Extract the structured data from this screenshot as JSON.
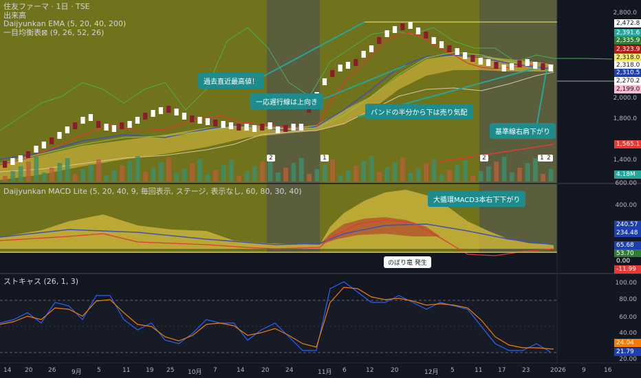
{
  "legend": {
    "title": "住友ファーマ · 1日 · TSE",
    "volume": "出来高",
    "ema": "Daijyunkan EMA (5, 20, 40, 200)",
    "ichimoku": "一目均衡表⊠ (9, 26, 52, 26)"
  },
  "macd_legend": "Daijyunkan MACD Lite (5, 20, 40, 9, 毎回表示, ステージ, 表示なし, 60, 80, 30, 40)",
  "stoch_legend": "ストキャス (26, 1, 3)",
  "callouts": {
    "c1": "過去直近最高値！",
    "c2": "一応遅行線は上向き",
    "c3": "バンドの半分から下は売り気配",
    "c4": "基準線右肩下がり",
    "c5": "大循環MACD3本右下下がり"
  },
  "marker_label": "のぼり竜 発生",
  "event_marks": [
    "2",
    "1",
    "2",
    "1",
    "2"
  ],
  "price_axis": [
    "2,800.0",
    "2,000.0",
    "1,800.0",
    "1,400.0"
  ],
  "price_tags": [
    {
      "v": "2,472.8",
      "bg": "#ffffff",
      "fg": "#131722"
    },
    {
      "v": "2,391.6",
      "bg": "#26a69a",
      "fg": "#ffffff"
    },
    {
      "v": "2,335.9",
      "bg": "#2e7d32",
      "fg": "#ffffff"
    },
    {
      "v": "2,323.9",
      "bg": "#b71c1c",
      "fg": "#ffffff"
    },
    {
      "v": "2,318.0",
      "bg": "#f5e76c",
      "fg": "#131722"
    },
    {
      "v": "2,318.0",
      "bg": "#ffffff",
      "fg": "#131722"
    },
    {
      "v": "2,310.5",
      "bg": "#1e40af",
      "fg": "#ffffff"
    },
    {
      "v": "2,270.2",
      "bg": "#ffffff",
      "fg": "#131722"
    },
    {
      "v": "2,199.0",
      "bg": "#f8bbd0",
      "fg": "#131722"
    }
  ],
  "price_tag_low": {
    "v": "1,565.1",
    "bg": "#e53935"
  },
  "volume_tag": {
    "v": "4.18M",
    "bg": "#26a69a"
  },
  "macd_axis": [
    "600.00",
    "400.00"
  ],
  "macd_tags": [
    {
      "v": "240.57",
      "bg": "#1e40af"
    },
    {
      "v": "234.48",
      "bg": "#1e40af"
    },
    {
      "v": "65.68",
      "bg": "#1e40af"
    },
    {
      "v": "53.70",
      "bg": "#2e7d32"
    },
    {
      "v": "0.00",
      "bg": "#131722"
    },
    {
      "v": "-11.99",
      "bg": "#e53935"
    }
  ],
  "stoch_axis": [
    "100.00",
    "80.00",
    "60.00",
    "40.00",
    "20.00"
  ],
  "stoch_tags": [
    {
      "v": "24.04",
      "bg": "#f57c00"
    },
    {
      "v": "21.79",
      "bg": "#1e40af"
    }
  ],
  "x_labels": [
    "14",
    "20",
    "26",
    "9月",
    "5",
    "11",
    "19",
    "25",
    "10月",
    "7",
    "14",
    "20",
    "24",
    "11月",
    "6",
    "12",
    "20",
    "12月",
    "5",
    "11",
    "17",
    "23",
    "2026",
    "9",
    "16"
  ],
  "chart_data": {
    "type": "table",
    "price_panel": {
      "levels": {
        "recent_high": 2472.8,
        "kijun_span": 2318.0,
        "low_line": 1565.1
      },
      "y_range": [
        1300,
        2850
      ]
    },
    "stochastic": {
      "k": 21.79,
      "d": 24.04,
      "levels": [
        80,
        20
      ]
    },
    "macd": {
      "values": [
        240.57,
        234.48,
        65.68,
        53.7,
        0.0,
        -11.99
      ]
    }
  }
}
